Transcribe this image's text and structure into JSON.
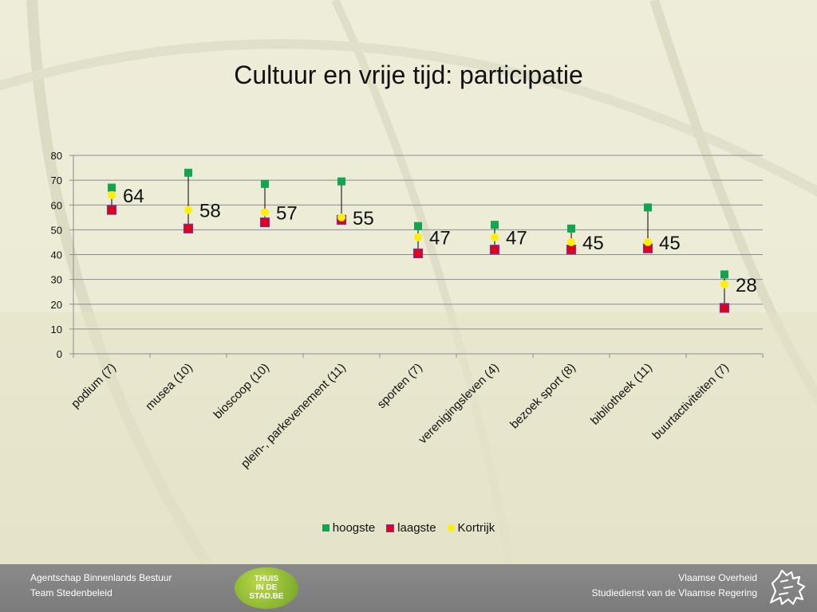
{
  "slide": {
    "title": "Cultuur en vrije tijd: participatie"
  },
  "chart_data": {
    "type": "scatter",
    "title": "",
    "categories": [
      "podium (7)",
      "musea (10)",
      "bioscoop (10)",
      "plein-, parkevenement (11)",
      "sporten (7)",
      "verenigingsleven (4)",
      "bezoek sport (8)",
      "bibliotheek (11)",
      "buurtactiviteiten (7)"
    ],
    "series": [
      {
        "name": "hoogste",
        "color": "#0fa64f",
        "marker": "square",
        "values": [
          67,
          73,
          68.5,
          69.5,
          51.5,
          52,
          50.5,
          59,
          32
        ]
      },
      {
        "name": "laagste",
        "color": "#e2001a",
        "marker": "square",
        "values": [
          58,
          50.5,
          53,
          54,
          40.5,
          42,
          42,
          42.5,
          18.5
        ]
      },
      {
        "name": "Kortrijk",
        "color": "#ffef00",
        "marker": "circle",
        "values": [
          64,
          58,
          57,
          55,
          47,
          47,
          45,
          45,
          28
        ]
      }
    ],
    "data_labels": [
      "64",
      "58",
      "57",
      "55",
      "47",
      "47",
      "45",
      "45",
      "28"
    ],
    "ylim": [
      0,
      80
    ],
    "yticks": [
      "0",
      "10",
      "20",
      "30",
      "40",
      "50",
      "60",
      "70",
      "80"
    ],
    "grid": true,
    "legend": "bottom"
  },
  "footer": {
    "left_line1": "Agentschap Binnenlands Bestuur",
    "left_line2": "Team Stedenbeleid",
    "right_line1": "Vlaamse Overheid",
    "right_line2": "Studiedienst van de Vlaamse Regering",
    "logo_line1": "THUIS",
    "logo_line2": "IN DE",
    "logo_line3": "STAD.BE"
  },
  "icons": {
    "footer_logo": "thuis-in-de-stad-logo",
    "flemish_lion": "flemish-lion-icon"
  }
}
